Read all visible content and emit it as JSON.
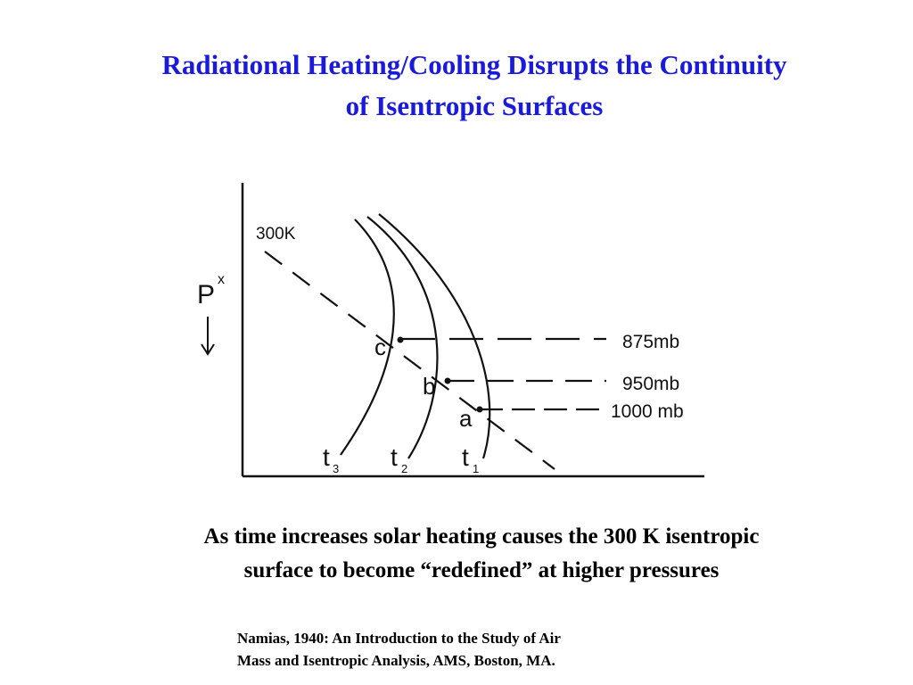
{
  "title": {
    "line1": "Radiational Heating/Cooling Disrupts the Continuity",
    "line2": "of Isentropic Surfaces"
  },
  "diagram": {
    "isentrope_label": "300K",
    "axis_label": "P",
    "axis_superscript": "x",
    "points": {
      "a": "a",
      "b": "b",
      "c": "c"
    },
    "levels": {
      "l875": "875mb",
      "l950": "950mb",
      "l1000": "1000 mb"
    },
    "curves": {
      "t1": "t",
      "t1_sub": "1",
      "t2": "t",
      "t2_sub": "2",
      "t3": "t",
      "t3_sub": "3"
    }
  },
  "caption": {
    "line1": "As time increases solar heating causes the 300 K isentropic",
    "line2": "surface to become “redefined” at higher pressures"
  },
  "reference": {
    "line1": "Namias, 1940: An Introduction to the Study of Air",
    "line2": "Mass and Isentropic Analysis, AMS, Boston, MA."
  },
  "colors": {
    "title": "#1a1adc",
    "ink": "#111111"
  }
}
